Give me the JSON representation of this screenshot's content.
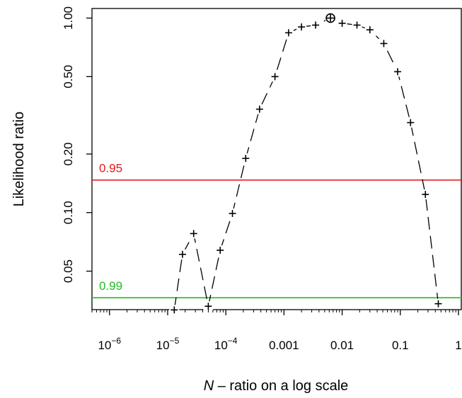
{
  "chart_data": {
    "type": "line",
    "xlabel_italic": "N",
    "xlabel_rest": " – ratio on a log scale",
    "ylabel": "Likelihood ratio",
    "x_scale": "log",
    "y_scale": "log",
    "xlim": [
      5e-07,
      1.15
    ],
    "ylim": [
      0.0317,
      1.12
    ],
    "x_ticks": [
      {
        "value": 1e-06,
        "base": "10",
        "exp": "−6"
      },
      {
        "value": 1e-05,
        "base": "10",
        "exp": "−5"
      },
      {
        "value": 0.0001,
        "base": "10",
        "exp": "−4"
      },
      {
        "value": 0.001,
        "label": "0.001"
      },
      {
        "value": 0.01,
        "label": "0.01"
      },
      {
        "value": 0.1,
        "label": "0.1"
      },
      {
        "value": 1,
        "label": "1"
      }
    ],
    "y_ticks": [
      {
        "value": 0.05,
        "label": "0.05"
      },
      {
        "value": 0.1,
        "label": "0.10"
      },
      {
        "value": 0.2,
        "label": "0.20"
      },
      {
        "value": 0.5,
        "label": "0.50"
      },
      {
        "value": 1.0,
        "label": "1.00"
      }
    ],
    "reference_lines": [
      {
        "label": "0.95",
        "y": 0.147,
        "color": "#e31a1c"
      },
      {
        "label": "0.99",
        "y": 0.0365,
        "color": "#1fbf1f"
      }
    ],
    "series": [
      {
        "marker": "+",
        "x": [
          1.3e-05,
          1.8e-05,
          2.8e-05,
          5e-05,
          8e-05,
          0.00013,
          0.00022,
          0.00038,
          0.0007,
          0.0012,
          0.002,
          0.0035,
          0.0063,
          0.01,
          0.018,
          0.03,
          0.052,
          0.09,
          0.15,
          0.27,
          0.45
        ],
        "y": [
          0.0316,
          0.061,
          0.078,
          0.033,
          0.064,
          0.099,
          0.19,
          0.34,
          0.5,
          0.84,
          0.9,
          0.92,
          1.0,
          0.94,
          0.92,
          0.87,
          0.74,
          0.53,
          0.29,
          0.124,
          0.034
        ]
      }
    ],
    "max_point": {
      "x": 0.0063,
      "y": 1.0,
      "marker": "circled-plus"
    }
  }
}
